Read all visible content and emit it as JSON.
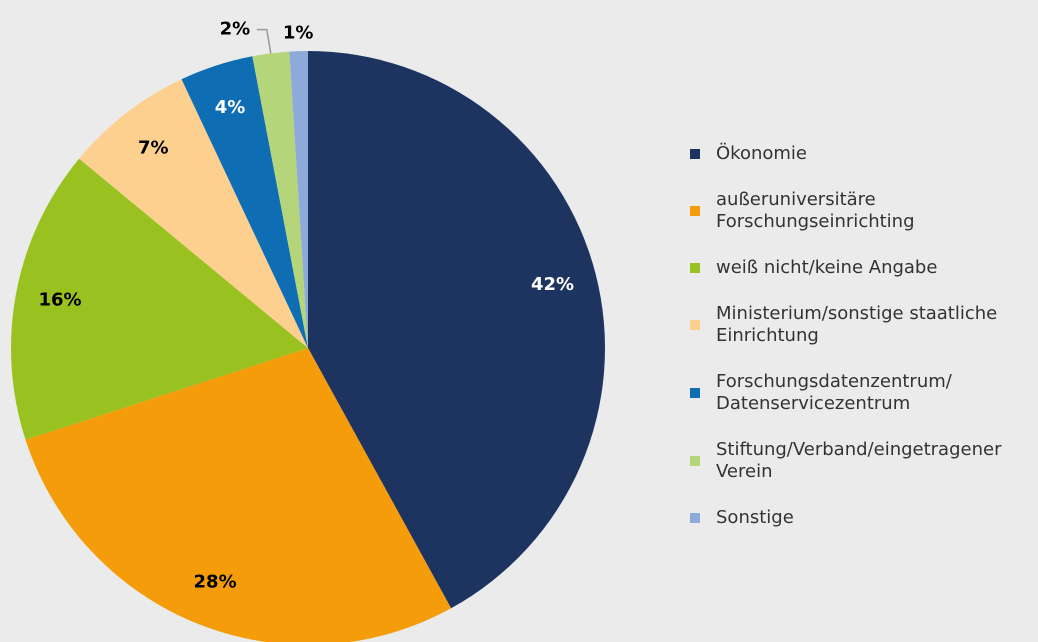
{
  "chart_data": {
    "type": "pie",
    "categories": [
      "Ökonomie",
      "außeruniversitäre Forschungseinrichting",
      "weiß nicht/keine Angabe",
      "Ministerium/sonstige staatliche Einrichtung",
      "Forschungsdatenzentrum/ Datenservicezentrum",
      "Stiftung/Verband/eingetragener Verein",
      "Sonstige"
    ],
    "values": [
      42,
      28,
      16,
      7,
      4,
      2,
      1
    ],
    "value_labels": [
      "42%",
      "28%",
      "16%",
      "7%",
      "4%",
      "2%",
      "1%"
    ],
    "colors": [
      "#1d3461",
      "#f59c0a",
      "#99c221",
      "#fdd090",
      "#0f6db4",
      "#b5d57a",
      "#8eaadb"
    ],
    "legend": "right"
  }
}
